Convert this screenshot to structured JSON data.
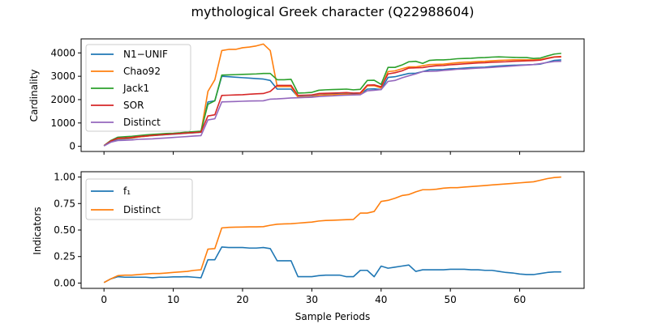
{
  "title": "mythological Greek character (Q22988604)",
  "chart_data": [
    {
      "type": "line",
      "ylabel": "Cardinality",
      "xlabel": "",
      "xlim": [
        -3.3,
        69.3
      ],
      "ylim": [
        -220,
        4600
      ],
      "xticks": [
        0,
        10,
        20,
        30,
        40,
        50,
        60
      ],
      "yticks": [
        0,
        1000,
        2000,
        3000,
        4000
      ],
      "ytick_labels": [
        "0",
        "1000",
        "2000",
        "3000",
        "4000"
      ],
      "legend_position": "upper-left",
      "grid": false,
      "series": [
        {
          "name": "N1−UNIF",
          "color": "#1f77b4",
          "values": [
            20,
            180,
            310,
            320,
            340,
            400,
            430,
            460,
            480,
            500,
            520,
            540,
            560,
            580,
            600,
            1900,
            1950,
            3000,
            2980,
            2960,
            2940,
            2920,
            2900,
            2880,
            2820,
            2450,
            2450,
            2450,
            2120,
            2130,
            2140,
            2200,
            2220,
            2230,
            2240,
            2250,
            2230,
            2240,
            2450,
            2460,
            2430,
            2950,
            2980,
            3050,
            3120,
            3130,
            3200,
            3280,
            3280,
            3290,
            3320,
            3330,
            3350,
            3370,
            3380,
            3390,
            3420,
            3440,
            3460,
            3470,
            3480,
            3490,
            3500,
            3520,
            3600,
            3680,
            3700
          ]
        },
        {
          "name": "Chao92",
          "color": "#ff7f0e",
          "values": [
            30,
            250,
            330,
            340,
            360,
            400,
            430,
            460,
            490,
            510,
            530,
            550,
            570,
            590,
            610,
            2350,
            2850,
            4100,
            4150,
            4150,
            4220,
            4250,
            4300,
            4380,
            4100,
            2560,
            2560,
            2560,
            2100,
            2110,
            2120,
            2190,
            2200,
            2210,
            2220,
            2230,
            2210,
            2230,
            2590,
            2600,
            2500,
            3200,
            3230,
            3320,
            3400,
            3400,
            3450,
            3500,
            3510,
            3520,
            3550,
            3580,
            3600,
            3610,
            3630,
            3640,
            3660,
            3680,
            3690,
            3700,
            3700,
            3700,
            3700,
            3720,
            3780,
            3830,
            3850
          ]
        },
        {
          "name": "Jack1",
          "color": "#2ca02c",
          "values": [
            30,
            250,
            390,
            410,
            430,
            460,
            490,
            510,
            530,
            550,
            560,
            580,
            610,
            630,
            650,
            1800,
            1950,
            3050,
            3060,
            3070,
            3080,
            3090,
            3100,
            3120,
            3120,
            2850,
            2850,
            2870,
            2280,
            2290,
            2310,
            2400,
            2420,
            2430,
            2440,
            2450,
            2420,
            2440,
            2820,
            2830,
            2650,
            3380,
            3380,
            3480,
            3620,
            3640,
            3550,
            3680,
            3700,
            3700,
            3720,
            3750,
            3760,
            3770,
            3790,
            3800,
            3820,
            3830,
            3820,
            3810,
            3800,
            3800,
            3760,
            3780,
            3870,
            3950,
            3980
          ]
        },
        {
          "name": "SOR",
          "color": "#d62728",
          "values": [
            25,
            230,
            350,
            360,
            380,
            420,
            440,
            470,
            490,
            510,
            530,
            550,
            570,
            590,
            610,
            1300,
            1350,
            2180,
            2190,
            2200,
            2210,
            2230,
            2250,
            2260,
            2350,
            2610,
            2610,
            2610,
            2180,
            2190,
            2200,
            2260,
            2270,
            2280,
            2290,
            2300,
            2280,
            2290,
            2620,
            2630,
            2550,
            3100,
            3150,
            3230,
            3350,
            3360,
            3370,
            3420,
            3450,
            3460,
            3490,
            3510,
            3530,
            3550,
            3570,
            3580,
            3600,
            3610,
            3620,
            3640,
            3650,
            3660,
            3670,
            3690,
            3760,
            3820,
            3830
          ]
        },
        {
          "name": "Distinct",
          "color": "#9467bd",
          "values": [
            20,
            180,
            250,
            260,
            270,
            300,
            310,
            320,
            340,
            360,
            380,
            400,
            420,
            440,
            460,
            1130,
            1180,
            1900,
            1910,
            1920,
            1930,
            1940,
            1945,
            1950,
            2020,
            2030,
            2050,
            2070,
            2080,
            2090,
            2100,
            2130,
            2150,
            2160,
            2180,
            2190,
            2200,
            2210,
            2380,
            2400,
            2430,
            2780,
            2820,
            2930,
            3020,
            3100,
            3200,
            3210,
            3220,
            3250,
            3270,
            3300,
            3310,
            3330,
            3350,
            3360,
            3380,
            3400,
            3420,
            3440,
            3460,
            3480,
            3500,
            3540,
            3590,
            3630,
            3640
          ]
        }
      ]
    },
    {
      "type": "line",
      "ylabel": "Indicators",
      "xlabel": "Sample Periods",
      "xlim": [
        -3.3,
        69.3
      ],
      "ylim": [
        -0.05,
        1.05
      ],
      "xticks": [
        0,
        10,
        20,
        30,
        40,
        50,
        60
      ],
      "yticks": [
        0,
        0.25,
        0.5,
        0.75,
        1.0
      ],
      "ytick_labels": [
        "0.00",
        "0.25",
        "0.50",
        "0.75",
        "1.00"
      ],
      "legend_position": "upper-left",
      "grid": false,
      "series": [
        {
          "name": "f₁",
          "color": "#1f77b4",
          "values": [
            0.005,
            0.04,
            0.06,
            0.055,
            0.055,
            0.055,
            0.055,
            0.05,
            0.055,
            0.055,
            0.058,
            0.058,
            0.06,
            0.055,
            0.05,
            0.22,
            0.22,
            0.34,
            0.335,
            0.335,
            0.335,
            0.33,
            0.33,
            0.335,
            0.325,
            0.21,
            0.21,
            0.21,
            0.06,
            0.06,
            0.06,
            0.07,
            0.075,
            0.075,
            0.075,
            0.06,
            0.06,
            0.12,
            0.12,
            0.06,
            0.16,
            0.14,
            0.15,
            0.16,
            0.17,
            0.11,
            0.125,
            0.125,
            0.125,
            0.125,
            0.13,
            0.13,
            0.13,
            0.125,
            0.125,
            0.12,
            0.12,
            0.11,
            0.1,
            0.095,
            0.085,
            0.08,
            0.08,
            0.09,
            0.1,
            0.105,
            0.105
          ]
        },
        {
          "name": "Distinct",
          "color": "#ff7f0e",
          "values": [
            0.005,
            0.04,
            0.07,
            0.075,
            0.075,
            0.08,
            0.085,
            0.09,
            0.09,
            0.095,
            0.1,
            0.105,
            0.11,
            0.12,
            0.125,
            0.32,
            0.325,
            0.52,
            0.525,
            0.527,
            0.528,
            0.53,
            0.53,
            0.532,
            0.545,
            0.555,
            0.558,
            0.56,
            0.565,
            0.57,
            0.575,
            0.585,
            0.59,
            0.592,
            0.595,
            0.598,
            0.6,
            0.66,
            0.66,
            0.675,
            0.77,
            0.78,
            0.8,
            0.825,
            0.835,
            0.86,
            0.88,
            0.88,
            0.885,
            0.895,
            0.9,
            0.9,
            0.905,
            0.91,
            0.915,
            0.92,
            0.925,
            0.93,
            0.935,
            0.94,
            0.945,
            0.95,
            0.955,
            0.97,
            0.985,
            0.995,
            1.0
          ]
        }
      ]
    }
  ]
}
